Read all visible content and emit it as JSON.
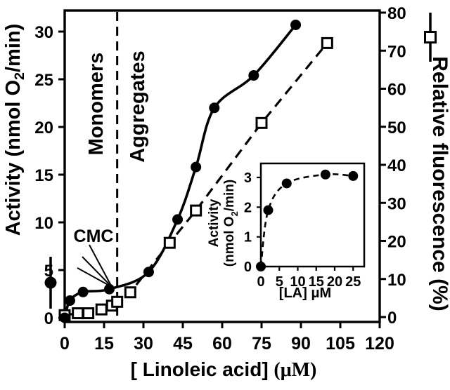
{
  "chart_data": {
    "type": "line",
    "title": "",
    "xlabel_main": "[ Linoleic acid]",
    "xlabel_unit": "(μM)",
    "x_ticks": [
      0,
      15,
      30,
      45,
      60,
      75,
      90,
      105,
      120
    ],
    "xlim": [
      0,
      120
    ],
    "grid": false,
    "colors": {
      "foreground": "#000000",
      "background": "#ffffff"
    },
    "left_axis": {
      "label": "Activity (nmol O2/min)",
      "ticks": [
        0,
        5,
        10,
        15,
        20,
        25,
        30
      ],
      "lim": [
        0,
        32.2
      ]
    },
    "right_axis": {
      "label": "Relative fluorescence (%)",
      "ticks": [
        0,
        10,
        20,
        30,
        40,
        50,
        60,
        70,
        80
      ],
      "lim": [
        0,
        80.6
      ]
    },
    "series": [
      {
        "name": "Activity",
        "axis": "left",
        "marker": "filled-circle",
        "line": "solid",
        "points": [
          [
            0,
            0
          ],
          [
            2,
            1.8
          ],
          [
            7,
            2.7
          ],
          [
            17,
            3.0
          ],
          [
            32,
            4.8
          ],
          [
            43,
            10.3
          ],
          [
            50,
            15.8
          ],
          [
            57,
            22.0
          ],
          [
            72,
            25.4
          ],
          [
            88,
            30.7
          ]
        ]
      },
      {
        "name": "Relative fluorescence",
        "axis": "right",
        "marker": "open-square",
        "line": "dashed",
        "points": [
          [
            0,
            0.5
          ],
          [
            5,
            1
          ],
          [
            9,
            1
          ],
          [
            14,
            2
          ],
          [
            18,
            3
          ],
          [
            20,
            4
          ],
          [
            25,
            6.5
          ],
          [
            40,
            19.5
          ],
          [
            50,
            28
          ],
          [
            75,
            51
          ],
          [
            100,
            72
          ]
        ]
      }
    ],
    "annotations": {
      "cmc_label": "CMC",
      "cmc_x": 20,
      "region_left": "Monomers",
      "region_right": "Aggregates"
    },
    "inset": {
      "type": "line",
      "xlabel": "[LA] μM",
      "ylabel_lines": [
        "Activity",
        "(nmol O2/min)"
      ],
      "x_ticks": [
        0,
        5,
        10,
        15,
        20,
        25
      ],
      "y_ticks": [
        0,
        1,
        2,
        3
      ],
      "xlim": [
        0,
        28
      ],
      "ylim": [
        0,
        3.45
      ],
      "series": [
        {
          "name": "Activity",
          "marker": "filled-circle",
          "line": "dashed",
          "points": [
            [
              0,
              0
            ],
            [
              2,
              1.9
            ],
            [
              7,
              2.8
            ],
            [
              17.5,
              3.1
            ],
            [
              25,
              3.05
            ]
          ]
        }
      ]
    }
  }
}
